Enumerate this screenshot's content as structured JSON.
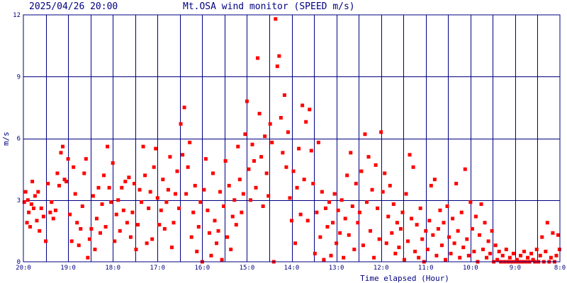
{
  "header": {
    "datetime": "2025/04/26 20:00",
    "title": "Mt.OSA wind monitor (SPEED m/s)"
  },
  "colors": {
    "axis": "#000080",
    "grid": "#000080",
    "point": "#ff0000",
    "background": "#ffffff"
  },
  "chart_data": {
    "type": "scatter",
    "title": "Mt.OSA wind monitor (SPEED m/s)",
    "xlabel": "Time elapsed (Hour)",
    "ylabel": "m/s",
    "ylim": [
      0,
      12
    ],
    "xlim": [
      0,
      12
    ],
    "grid": true,
    "y_ticks": [
      0,
      3,
      6,
      9,
      12
    ],
    "x_tick_labels": [
      "20:0",
      "19:0",
      "18:0",
      "17:0",
      "16:0",
      "15:0",
      "14:0",
      "13:0",
      "12:0",
      "11:0",
      "10:0",
      "9:0",
      "8:0"
    ],
    "series": [
      {
        "points": [
          [
            0.02,
            2.9
          ],
          [
            0.05,
            3.4
          ],
          [
            0.08,
            1.9
          ],
          [
            0.1,
            3.0
          ],
          [
            0.12,
            2.4
          ],
          [
            0.15,
            1.7
          ],
          [
            0.18,
            2.8
          ],
          [
            0.2,
            3.9
          ],
          [
            0.23,
            2.6
          ],
          [
            0.26,
            3.2
          ],
          [
            0.3,
            2.0
          ],
          [
            0.33,
            3.4
          ],
          [
            0.36,
            1.5
          ],
          [
            0.4,
            2.6
          ],
          [
            0.45,
            2.2
          ],
          [
            0.5,
            1.0
          ],
          [
            0.55,
            3.8
          ],
          [
            0.6,
            2.4
          ],
          [
            0.63,
            2.9
          ],
          [
            0.67,
            2.1
          ],
          [
            0.72,
            2.5
          ],
          [
            0.76,
            4.3
          ],
          [
            0.8,
            3.7
          ],
          [
            0.84,
            5.3
          ],
          [
            0.88,
            5.6
          ],
          [
            0.92,
            4.0
          ],
          [
            0.96,
            3.9
          ],
          [
            1.0,
            5.0
          ],
          [
            1.04,
            2.3
          ],
          [
            1.08,
            1.0
          ],
          [
            1.12,
            4.6
          ],
          [
            1.16,
            3.3
          ],
          [
            1.2,
            1.9
          ],
          [
            1.24,
            0.8
          ],
          [
            1.28,
            1.6
          ],
          [
            1.32,
            2.7
          ],
          [
            1.36,
            4.3
          ],
          [
            1.4,
            5.0
          ],
          [
            1.44,
            0.2
          ],
          [
            1.48,
            1.1
          ],
          [
            1.52,
            1.6
          ],
          [
            1.56,
            3.2
          ],
          [
            1.6,
            0.6
          ],
          [
            1.64,
            2.1
          ],
          [
            1.68,
            3.6
          ],
          [
            1.72,
            1.4
          ],
          [
            1.76,
            2.8
          ],
          [
            1.8,
            4.2
          ],
          [
            1.84,
            1.7
          ],
          [
            1.88,
            5.6
          ],
          [
            1.92,
            3.6
          ],
          [
            1.96,
            2.9
          ],
          [
            2.0,
            4.8
          ],
          [
            2.04,
            1.0
          ],
          [
            2.08,
            2.3
          ],
          [
            2.12,
            3.0
          ],
          [
            2.16,
            1.5
          ],
          [
            2.2,
            3.6
          ],
          [
            2.24,
            2.5
          ],
          [
            2.28,
            3.9
          ],
          [
            2.32,
            1.9
          ],
          [
            2.36,
            4.1
          ],
          [
            2.4,
            1.2
          ],
          [
            2.44,
            2.4
          ],
          [
            2.48,
            3.8
          ],
          [
            2.52,
            0.6
          ],
          [
            2.56,
            1.8
          ],
          [
            2.6,
            3.5
          ],
          [
            2.64,
            2.9
          ],
          [
            2.68,
            5.6
          ],
          [
            2.72,
            4.2
          ],
          [
            2.76,
            0.9
          ],
          [
            2.8,
            2.6
          ],
          [
            2.84,
            3.4
          ],
          [
            2.88,
            1.1
          ],
          [
            2.92,
            4.6
          ],
          [
            2.96,
            5.5
          ],
          [
            3.0,
            3.1
          ],
          [
            3.04,
            1.8
          ],
          [
            3.08,
            2.5
          ],
          [
            3.12,
            4.0
          ],
          [
            3.16,
            1.6
          ],
          [
            3.2,
            2.9
          ],
          [
            3.24,
            3.5
          ],
          [
            3.28,
            5.1
          ],
          [
            3.32,
            0.7
          ],
          [
            3.36,
            1.9
          ],
          [
            3.4,
            3.3
          ],
          [
            3.44,
            4.4
          ],
          [
            3.48,
            2.6
          ],
          [
            3.52,
            6.7
          ],
          [
            3.56,
            5.2
          ],
          [
            3.6,
            7.5
          ],
          [
            3.64,
            3.3
          ],
          [
            3.68,
            4.6
          ],
          [
            3.72,
            5.8
          ],
          [
            3.76,
            1.2
          ],
          [
            3.8,
            2.4
          ],
          [
            3.84,
            3.7
          ],
          [
            3.88,
            0.5
          ],
          [
            3.92,
            1.7
          ],
          [
            3.96,
            2.9
          ],
          [
            4.0,
            0.0
          ],
          [
            4.04,
            3.5
          ],
          [
            4.08,
            5.0
          ],
          [
            4.12,
            2.5
          ],
          [
            4.16,
            1.4
          ],
          [
            4.2,
            0.3
          ],
          [
            4.24,
            4.3
          ],
          [
            4.28,
            2.0
          ],
          [
            4.32,
            0.9
          ],
          [
            4.36,
            1.5
          ],
          [
            4.4,
            3.4
          ],
          [
            4.44,
            0.1
          ],
          [
            4.48,
            2.7
          ],
          [
            4.52,
            4.9
          ],
          [
            4.56,
            1.2
          ],
          [
            4.6,
            3.7
          ],
          [
            4.64,
            0.6
          ],
          [
            4.68,
            2.2
          ],
          [
            4.72,
            3.0
          ],
          [
            4.76,
            1.8
          ],
          [
            4.8,
            5.6
          ],
          [
            4.84,
            4.0
          ],
          [
            4.88,
            2.4
          ],
          [
            4.92,
            3.3
          ],
          [
            4.96,
            6.2
          ],
          [
            5.0,
            7.8
          ],
          [
            5.04,
            4.5
          ],
          [
            5.08,
            3.0
          ],
          [
            5.12,
            5.7
          ],
          [
            5.16,
            4.9
          ],
          [
            5.2,
            3.6
          ],
          [
            5.24,
            9.9
          ],
          [
            5.28,
            7.2
          ],
          [
            5.32,
            5.1
          ],
          [
            5.36,
            2.7
          ],
          [
            5.4,
            6.1
          ],
          [
            5.44,
            4.3
          ],
          [
            5.48,
            3.2
          ],
          [
            5.52,
            6.7
          ],
          [
            5.56,
            5.8
          ],
          [
            5.6,
            0.0
          ],
          [
            5.64,
            11.8
          ],
          [
            5.68,
            9.5
          ],
          [
            5.72,
            10.0
          ],
          [
            5.76,
            7.0
          ],
          [
            5.8,
            5.3
          ],
          [
            5.84,
            8.1
          ],
          [
            5.88,
            4.6
          ],
          [
            5.92,
            6.3
          ],
          [
            5.96,
            3.1
          ],
          [
            6.0,
            2.0
          ],
          [
            6.04,
            4.4
          ],
          [
            6.08,
            0.9
          ],
          [
            6.12,
            3.6
          ],
          [
            6.16,
            5.5
          ],
          [
            6.2,
            2.3
          ],
          [
            6.24,
            7.6
          ],
          [
            6.28,
            4.0
          ],
          [
            6.32,
            6.8
          ],
          [
            6.36,
            2.0
          ],
          [
            6.4,
            7.4
          ],
          [
            6.44,
            5.4
          ],
          [
            6.48,
            3.8
          ],
          [
            6.52,
            0.4
          ],
          [
            6.56,
            2.4
          ],
          [
            6.6,
            5.8
          ],
          [
            6.64,
            1.2
          ],
          [
            6.68,
            3.4
          ],
          [
            6.72,
            0.1
          ],
          [
            6.76,
            2.6
          ],
          [
            6.8,
            1.7
          ],
          [
            6.84,
            2.9
          ],
          [
            6.88,
            0.3
          ],
          [
            6.92,
            1.9
          ],
          [
            6.96,
            3.3
          ],
          [
            7.0,
            0.9
          ],
          [
            7.04,
            2.5
          ],
          [
            7.08,
            1.4
          ],
          [
            7.12,
            3.0
          ],
          [
            7.16,
            0.2
          ],
          [
            7.2,
            2.1
          ],
          [
            7.24,
            4.2
          ],
          [
            7.28,
            1.3
          ],
          [
            7.32,
            5.3
          ],
          [
            7.36,
            2.7
          ],
          [
            7.4,
            0.6
          ],
          [
            7.44,
            3.8
          ],
          [
            7.48,
            1.9
          ],
          [
            7.52,
            2.4
          ],
          [
            7.56,
            4.4
          ],
          [
            7.6,
            0.8
          ],
          [
            7.64,
            6.2
          ],
          [
            7.68,
            2.9
          ],
          [
            7.72,
            5.1
          ],
          [
            7.76,
            1.5
          ],
          [
            7.8,
            3.5
          ],
          [
            7.84,
            0.2
          ],
          [
            7.88,
            4.7
          ],
          [
            7.92,
            2.6
          ],
          [
            7.96,
            1.1
          ],
          [
            8.0,
            6.3
          ],
          [
            8.04,
            3.4
          ],
          [
            8.08,
            4.3
          ],
          [
            8.12,
            0.9
          ],
          [
            8.16,
            2.2
          ],
          [
            8.2,
            3.7
          ],
          [
            8.24,
            1.4
          ],
          [
            8.28,
            2.8
          ],
          [
            8.32,
            0.4
          ],
          [
            8.36,
            1.9
          ],
          [
            8.4,
            0.7
          ],
          [
            8.44,
            1.6
          ],
          [
            8.48,
            2.4
          ],
          [
            8.52,
            0.1
          ],
          [
            8.56,
            3.3
          ],
          [
            8.6,
            1.0
          ],
          [
            8.64,
            5.2
          ],
          [
            8.68,
            2.1
          ],
          [
            8.72,
            4.6
          ],
          [
            8.76,
            0.5
          ],
          [
            8.8,
            1.8
          ],
          [
            8.84,
            0.2
          ],
          [
            8.88,
            2.6
          ],
          [
            8.92,
            1.1
          ],
          [
            8.96,
            0.0
          ],
          [
            9.0,
            1.5
          ],
          [
            9.04,
            0.6
          ],
          [
            9.08,
            2.0
          ],
          [
            9.12,
            3.7
          ],
          [
            9.16,
            1.3
          ],
          [
            9.2,
            4.0
          ],
          [
            9.24,
            0.3
          ],
          [
            9.28,
            1.6
          ],
          [
            9.32,
            2.5
          ],
          [
            9.36,
            0.8
          ],
          [
            9.4,
            1.9
          ],
          [
            9.44,
            0.1
          ],
          [
            9.48,
            2.7
          ],
          [
            9.52,
            1.2
          ],
          [
            9.56,
            0.4
          ],
          [
            9.6,
            2.1
          ],
          [
            9.64,
            0.9
          ],
          [
            9.68,
            3.8
          ],
          [
            9.72,
            1.5
          ],
          [
            9.76,
            0.2
          ],
          [
            9.8,
            2.4
          ],
          [
            9.84,
            0.7
          ],
          [
            9.88,
            4.5
          ],
          [
            9.92,
            1.1
          ],
          [
            9.96,
            0.3
          ],
          [
            10.0,
            2.9
          ],
          [
            10.04,
            1.6
          ],
          [
            10.08,
            0.5
          ],
          [
            10.12,
            2.2
          ],
          [
            10.16,
            0.0
          ],
          [
            10.2,
            1.3
          ],
          [
            10.24,
            2.8
          ],
          [
            10.28,
            0.6
          ],
          [
            10.32,
            1.9
          ],
          [
            10.36,
            0.2
          ],
          [
            10.4,
            1.0
          ],
          [
            10.44,
            0.4
          ],
          [
            10.48,
            1.5
          ],
          [
            10.52,
            0.0
          ],
          [
            10.56,
            0.8
          ],
          [
            10.6,
            0.1
          ],
          [
            10.64,
            0.5
          ],
          [
            10.68,
            0.0
          ],
          [
            10.72,
            0.3
          ],
          [
            10.76,
            0.0
          ],
          [
            10.8,
            0.6
          ],
          [
            10.84,
            0.0
          ],
          [
            10.88,
            0.2
          ],
          [
            10.92,
            0.0
          ],
          [
            10.96,
            0.4
          ],
          [
            11.0,
            0.0
          ],
          [
            11.04,
            0.1
          ],
          [
            11.08,
            0.0
          ],
          [
            11.12,
            0.3
          ],
          [
            11.16,
            0.0
          ],
          [
            11.2,
            0.5
          ],
          [
            11.24,
            0.0
          ],
          [
            11.28,
            0.2
          ],
          [
            11.32,
            0.0
          ],
          [
            11.36,
            0.4
          ],
          [
            11.4,
            0.1
          ],
          [
            11.44,
            0.0
          ],
          [
            11.48,
            0.6
          ],
          [
            11.52,
            0.0
          ],
          [
            11.56,
            0.3
          ],
          [
            11.6,
            1.2
          ],
          [
            11.64,
            0.0
          ],
          [
            11.68,
            0.5
          ],
          [
            11.72,
            1.9
          ],
          [
            11.76,
            0.0
          ],
          [
            11.8,
            0.2
          ],
          [
            11.84,
            1.4
          ],
          [
            11.88,
            0.0
          ],
          [
            11.92,
            0.3
          ],
          [
            11.96,
            1.3
          ],
          [
            11.99,
            0.6
          ]
        ]
      }
    ]
  }
}
